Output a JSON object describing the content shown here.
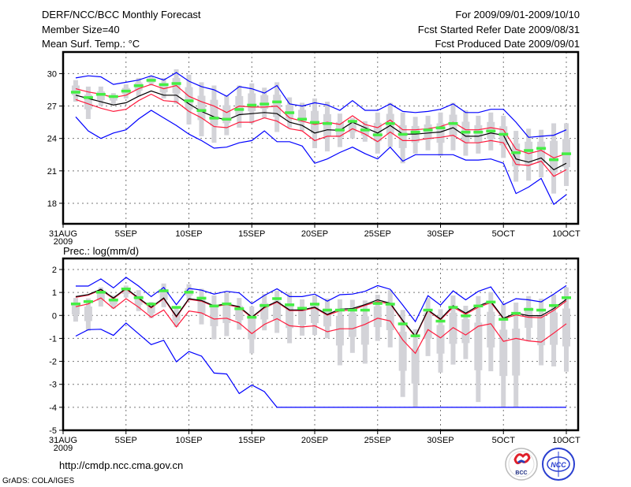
{
  "header": {
    "title": "DERF/NCC/BCC Monthly Forecast",
    "member_size": "Member Size=40",
    "variable": "Mean Surf. Temp.: °C",
    "period": "For 2009/09/01-2009/10/10",
    "started": "Fcst Started Refer Date 2009/08/31",
    "produced": "Fcst Produced Date 2009/09/01"
  },
  "footer": {
    "url": "http://cmdp.ncc.cma.gov.cn",
    "credit": "GrADS: COLA/IGES",
    "logos": [
      "BCC",
      "NCC"
    ]
  },
  "colors": {
    "max_min": "#0000ff",
    "spread": "#ff1a3c",
    "mean": "#000000",
    "median": "#44ee44",
    "range": "#d3d3d8"
  },
  "chart_data": [
    {
      "type": "line",
      "title": "Mean Surf. Temp.: °C",
      "x_ticks": [
        {
          "day": 0,
          "label": "31AUG",
          "sub": "2009"
        },
        {
          "day": 5,
          "label": "5SEP"
        },
        {
          "day": 10,
          "label": "10SEP"
        },
        {
          "day": 15,
          "label": "15SEP"
        },
        {
          "day": 20,
          "label": "20SEP"
        },
        {
          "day": 25,
          "label": "25SEP"
        },
        {
          "day": 30,
          "label": "30SEP"
        },
        {
          "day": 35,
          "label": "5OCT"
        },
        {
          "day": 40,
          "label": "10OCT"
        }
      ],
      "y_ticks": [
        18,
        21,
        24,
        27,
        30
      ],
      "xlim": [
        0,
        40.94
      ],
      "ylim": [
        16.1,
        32.0
      ],
      "grid": true,
      "x": [
        1,
        2,
        3,
        4,
        5,
        6,
        7,
        8,
        9,
        10,
        11,
        12,
        13,
        14,
        15,
        16,
        17,
        18,
        19,
        20,
        21,
        22,
        23,
        24,
        25,
        26,
        27,
        28,
        29,
        30,
        31,
        32,
        33,
        34,
        35,
        36,
        37,
        38,
        39,
        40
      ],
      "series": [
        {
          "name": "max",
          "color": "#0000ff",
          "values": [
            29.6,
            29.8,
            29.7,
            29.0,
            29.2,
            29.4,
            29.8,
            29.4,
            30.1,
            29.3,
            28.8,
            28.5,
            27.9,
            28.8,
            28.6,
            28.2,
            28.9,
            27.2,
            27.0,
            27.3,
            27.1,
            26.6,
            27.5,
            26.6,
            26.6,
            27.2,
            26.5,
            26.4,
            26.5,
            26.7,
            27.2,
            26.4,
            26.4,
            26.7,
            26.7,
            25.5,
            24.1,
            24.2,
            24.3,
            24.8
          ]
        },
        {
          "name": "upper",
          "color": "#ff1a3c",
          "values": [
            28.6,
            28.3,
            28.1,
            27.8,
            28.0,
            28.6,
            29.0,
            28.6,
            28.9,
            27.9,
            27.4,
            27.0,
            26.4,
            27.0,
            26.9,
            26.9,
            27.0,
            25.9,
            25.6,
            25.3,
            25.5,
            25.3,
            26.1,
            25.3,
            25.0,
            25.7,
            24.8,
            24.8,
            24.9,
            25.1,
            25.5,
            24.8,
            24.8,
            25.0,
            24.8,
            23.0,
            22.6,
            22.9,
            22.2,
            22.6
          ]
        },
        {
          "name": "mean",
          "color": "#000000",
          "values": [
            28.0,
            27.7,
            27.4,
            27.1,
            27.3,
            27.9,
            28.4,
            28.0,
            28.0,
            27.2,
            26.5,
            26.0,
            25.7,
            26.2,
            26.3,
            26.4,
            26.3,
            25.5,
            25.2,
            24.5,
            24.8,
            24.75,
            25.5,
            25.0,
            24.5,
            25.2,
            24.4,
            24.4,
            24.5,
            24.6,
            25.0,
            24.2,
            24.2,
            24.5,
            24.3,
            22.1,
            21.8,
            22.2,
            21.1,
            21.7
          ]
        },
        {
          "name": "lower",
          "color": "#ff1a3c",
          "values": [
            27.6,
            27.2,
            26.8,
            26.5,
            26.7,
            27.5,
            28.1,
            27.5,
            27.4,
            26.5,
            25.9,
            25.1,
            25.0,
            25.5,
            25.5,
            25.9,
            25.6,
            24.9,
            24.7,
            23.8,
            24.2,
            24.2,
            24.9,
            24.4,
            23.7,
            24.6,
            23.8,
            23.8,
            24.0,
            24.1,
            24.3,
            23.6,
            23.6,
            23.8,
            23.6,
            21.6,
            21.5,
            21.9,
            20.5,
            21.1
          ]
        },
        {
          "name": "min",
          "color": "#0000ff",
          "values": [
            26.0,
            24.7,
            24.0,
            24.5,
            24.8,
            25.8,
            26.6,
            25.9,
            25.2,
            24.4,
            23.8,
            23.1,
            23.2,
            23.6,
            23.8,
            24.7,
            23.7,
            23.7,
            23.3,
            21.7,
            22.1,
            22.7,
            23.2,
            22.6,
            22.1,
            23.2,
            21.9,
            22.5,
            22.5,
            22.5,
            22.5,
            22.0,
            22.0,
            22.1,
            21.7,
            18.9,
            19.5,
            20.3,
            17.9,
            18.8
          ]
        }
      ],
      "median": [
        28.3,
        27.8,
        28.1,
        27.9,
        28.4,
        28.9,
        29.4,
        29.0,
        29.1,
        27.5,
        26.6,
        25.9,
        25.8,
        26.7,
        27.1,
        27.2,
        27.4,
        26.4,
        25.8,
        25.5,
        25.4,
        24.8,
        25.6,
        24.8,
        24.35,
        25.4,
        24.4,
        24.6,
        24.8,
        25.0,
        25.4,
        24.6,
        24.6,
        24.7,
        24.4,
        22.7,
        22.9,
        23.1,
        22.05,
        22.6
      ],
      "range_high": [
        29.4,
        28.8,
        28.8,
        28.2,
        29.0,
        29.6,
        29.8,
        29.6,
        30.4,
        29.9,
        29.2,
        28.9,
        28.0,
        28.9,
        29.1,
        28.7,
        29.2,
        27.8,
        27.3,
        27.7,
        27.4,
        26.3,
        25.9,
        25.6,
        26.4,
        27.3,
        26.4,
        26.0,
        26.1,
        26.4,
        27.3,
        26.6,
        26.1,
        26.4,
        26.1,
        24.7,
        24.9,
        24.8,
        25.4,
        25.4
      ],
      "range_low": [
        27.4,
        25.8,
        27.0,
        27.2,
        27.7,
        27.9,
        28.9,
        27.7,
        27.2,
        25.3,
        24.2,
        23.6,
        24.3,
        25.0,
        25.4,
        25.9,
        24.6,
        25.0,
        24.7,
        23.1,
        22.8,
        23.2,
        24.0,
        23.7,
        22.6,
        23.2,
        21.7,
        22.6,
        22.9,
        22.4,
        22.9,
        22.4,
        22.6,
        22.9,
        22.2,
        20.0,
        20.1,
        20.4,
        18.9,
        19.6
      ]
    },
    {
      "type": "line",
      "title": "Prec.: log(mm/d)",
      "x_ticks": [
        {
          "day": 0,
          "label": "31AUG",
          "sub": "2009"
        },
        {
          "day": 5,
          "label": "5SEP"
        },
        {
          "day": 10,
          "label": "10SEP"
        },
        {
          "day": 15,
          "label": "15SEP"
        },
        {
          "day": 20,
          "label": "20SEP"
        },
        {
          "day": 25,
          "label": "25SEP"
        },
        {
          "day": 30,
          "label": "30SEP"
        },
        {
          "day": 35,
          "label": "5OCT"
        },
        {
          "day": 40,
          "label": "10OCT"
        }
      ],
      "y_ticks": [
        -5,
        -4,
        -3,
        -2,
        -1,
        0,
        1,
        2
      ],
      "xlim": [
        0,
        40.94
      ],
      "ylim": [
        -5,
        2.48
      ],
      "grid": true,
      "x": [
        1,
        2,
        3,
        4,
        5,
        6,
        7,
        8,
        9,
        10,
        11,
        12,
        13,
        14,
        15,
        16,
        17,
        18,
        19,
        20,
        21,
        22,
        23,
        24,
        25,
        26,
        27,
        28,
        29,
        30,
        31,
        32,
        33,
        34,
        35,
        36,
        37,
        38,
        39,
        40
      ],
      "series": [
        {
          "name": "max",
          "color": "#0000ff",
          "values": [
            1.28,
            1.28,
            1.59,
            1.2,
            1.66,
            1.28,
            0.82,
            1.22,
            0.47,
            1.18,
            1.1,
            0.93,
            1.05,
            0.98,
            0.51,
            0.87,
            1.16,
            0.82,
            0.82,
            0.93,
            0.62,
            0.9,
            0.93,
            1.05,
            1.3,
            1.14,
            0.45,
            -0.27,
            0.86,
            0.45,
            1.07,
            0.68,
            1.05,
            1.24,
            0.47,
            0.73,
            0.68,
            0.59,
            0.93,
            1.3
          ]
        },
        {
          "name": "upper",
          "color": "#ff1a3c",
          "values": [
            0.79,
            0.88,
            1.11,
            0.73,
            1.15,
            0.73,
            0.33,
            0.73,
            -0.07,
            0.7,
            0.62,
            0.39,
            0.47,
            0.35,
            -0.1,
            0.33,
            0.58,
            0.21,
            0.21,
            0.33,
            0.01,
            0.2,
            0.24,
            0.44,
            0.6,
            0.5,
            -0.25,
            -0.93,
            0.21,
            -0.19,
            0.36,
            0.05,
            0.36,
            0.56,
            -0.15,
            0.02,
            -0.08,
            -0.1,
            0.22,
            0.63
          ]
        },
        {
          "name": "mean",
          "color": "#000000",
          "values": [
            0.82,
            0.91,
            1.14,
            0.76,
            1.18,
            0.76,
            0.36,
            0.76,
            -0.04,
            0.73,
            0.65,
            0.42,
            0.5,
            0.38,
            -0.07,
            0.36,
            0.61,
            0.24,
            0.24,
            0.36,
            0.04,
            0.27,
            0.3,
            0.47,
            0.68,
            0.53,
            -0.22,
            -0.9,
            0.24,
            -0.16,
            0.42,
            0.1,
            0.42,
            0.61,
            -0.12,
            0.1,
            -0.01,
            -0.01,
            0.3,
            0.7
          ]
        },
        {
          "name": "lower",
          "color": "#ff1a3c",
          "values": [
            0.38,
            0.5,
            0.76,
            0.3,
            0.73,
            0.36,
            -0.08,
            0.24,
            -0.5,
            0.19,
            0.11,
            -0.16,
            -0.12,
            -0.33,
            -0.79,
            -0.39,
            -0.14,
            -0.45,
            -0.5,
            -0.45,
            -0.71,
            -0.58,
            -0.58,
            -0.39,
            -0.12,
            -0.24,
            -1.07,
            -1.65,
            -0.62,
            -0.98,
            -0.53,
            -0.85,
            -0.47,
            -0.36,
            -1.13,
            -1.0,
            -1.11,
            -1.16,
            -0.77,
            -0.36
          ]
        },
        {
          "name": "min",
          "color": "#0000ff",
          "values": [
            -0.9,
            -0.62,
            -0.6,
            -0.87,
            -0.33,
            -0.8,
            -1.27,
            -1.08,
            -2.02,
            -1.57,
            -1.77,
            -2.51,
            -2.55,
            -3.4,
            -3.03,
            -3.32,
            -4,
            -4,
            -4,
            -4,
            -4,
            -4,
            -4,
            -4,
            -4,
            -4,
            -4,
            -4,
            -4,
            -4,
            -4,
            -4,
            -4,
            -4,
            -4,
            -4,
            -4,
            -4,
            -4,
            -4
          ]
        }
      ],
      "median": [
        0.51,
        0.61,
        1.02,
        0.68,
        1.16,
        0.78,
        0.5,
        1.08,
        0.36,
        1.02,
        0.76,
        0.42,
        0.51,
        0.3,
        -0.07,
        0.44,
        0.74,
        0.47,
        0.32,
        0.5,
        0.24,
        0.24,
        0.24,
        0.24,
        0.53,
        0.5,
        -0.36,
        -0.88,
        0.24,
        -0.24,
        0.36,
        -0.01,
        0.42,
        0.59,
        -0.16,
        0.1,
        0.27,
        0.24,
        0.44,
        0.78
      ],
      "range_high": [
        0.76,
        0.74,
        1.22,
        0.87,
        1.3,
        1.1,
        0.59,
        1.39,
        0.38,
        1.36,
        1.16,
        0.87,
        0.99,
        0.76,
        0.39,
        0.93,
        1.07,
        0.99,
        0.7,
        0.87,
        0.74,
        0.7,
        0.68,
        0.65,
        0.9,
        1.1,
        0.24,
        -0.6,
        0.76,
        0.27,
        0.87,
        0.42,
        0.84,
        1.02,
        0.5,
        0.56,
        0.84,
        0.73,
        0.91,
        1.22
      ],
      "range_low": [
        -0.27,
        -0.67,
        0.39,
        0.3,
        0.78,
        0.19,
        -0.12,
        0.36,
        -0.5,
        0.65,
        -0.39,
        -1.04,
        -0.9,
        -0.62,
        -1.65,
        -0.65,
        -0.76,
        -1.21,
        -0.88,
        -0.85,
        -1.0,
        -2.17,
        -1.63,
        -2.1,
        -1.11,
        -1.39,
        -3.55,
        -3.98,
        -1.77,
        -2.49,
        -2.14,
        -1.9,
        -3.77,
        -2.43,
        -3.98,
        -3.98,
        -1.13,
        -2.17,
        -2.22,
        -2.45
      ]
    }
  ]
}
